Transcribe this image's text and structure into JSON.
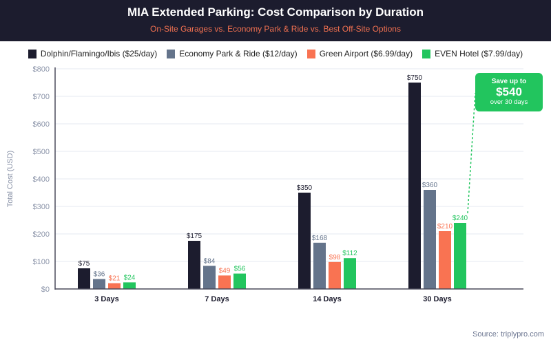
{
  "chart_data": {
    "type": "bar",
    "title": "MIA Extended Parking: Cost Comparison by Duration",
    "subtitle": "On-Site Garages vs. Economy Park & Ride vs. Best Off-Site Options",
    "categories": [
      "3 Days",
      "7 Days",
      "14 Days",
      "30 Days"
    ],
    "series": [
      {
        "name": "Dolphin/Flamingo/Ibis ($25/day)",
        "color": "#1c1c2e",
        "label_color": "#1c1c2e",
        "values": [
          75,
          175,
          350,
          750
        ]
      },
      {
        "name": "Economy Park & Ride ($12/day)",
        "color": "#64748b",
        "label_color": "#64748b",
        "values": [
          36,
          84,
          168,
          360
        ]
      },
      {
        "name": "Green Airport ($6.99/day)",
        "color": "#f97352",
        "label_color": "#f97352",
        "values": [
          21,
          49,
          98,
          210
        ]
      },
      {
        "name": "EVEN Hotel ($7.99/day)",
        "color": "#22c55e",
        "label_color": "#22c55e",
        "values": [
          24,
          56,
          112,
          240
        ]
      }
    ],
    "value_labels": [
      [
        "$75",
        "$175",
        "$350",
        "$750"
      ],
      [
        "$36",
        "$84",
        "$168",
        "$360"
      ],
      [
        "$21",
        "$49",
        "$98",
        "$210"
      ],
      [
        "$24",
        "$56",
        "$112",
        "$240"
      ]
    ],
    "ylabel": "Total Cost (USD)",
    "xlabel": "",
    "ylim": [
      0,
      800
    ],
    "yticks": [
      0,
      100,
      200,
      300,
      400,
      500,
      600,
      700,
      800
    ],
    "ytick_labels": [
      "$0",
      "$100",
      "$200",
      "$300",
      "$400",
      "$500",
      "$600",
      "$700",
      "$800"
    ],
    "grid": true,
    "legend_position": "top",
    "annotation": {
      "line1": "Save up to",
      "line2": "$540",
      "line3": "over 30 days",
      "color": "#22c55e"
    }
  },
  "source": "Source: triplypro.com"
}
